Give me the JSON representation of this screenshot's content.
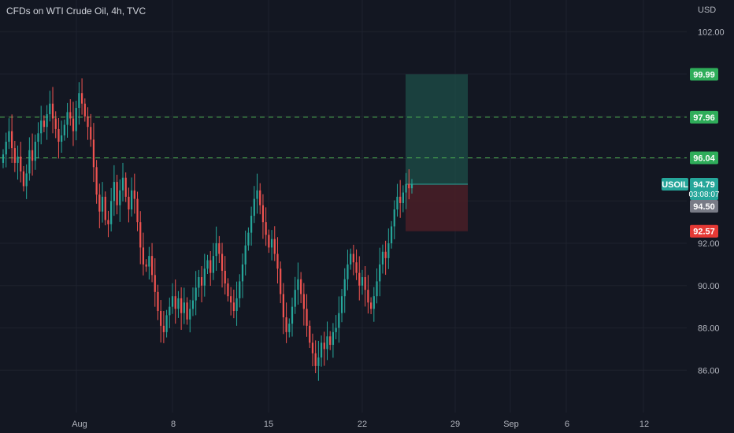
{
  "header": {
    "title": "CFDs on WTI Crude Oil, 4h, TVC",
    "currency": "USD"
  },
  "colors": {
    "background": "#131722",
    "grid": "#1e222d",
    "bull": "#26a69a",
    "bear": "#ef5350",
    "dashed_line": "#4caf50",
    "profit_zone": "#1d4f48",
    "loss_zone": "#4a1f27",
    "label_green": "#2fad5a",
    "label_teal": "#26a69a",
    "label_gray": "#787b86",
    "label_red": "#e53935"
  },
  "price_labels": {
    "take_profit": "99.99",
    "target_97": "97.96",
    "target_96": "96.04",
    "last_price": "94.79",
    "countdown": "03:08:07",
    "entry": "94.50",
    "stop": "92.57",
    "symbol": "USOIL"
  },
  "chart_data": {
    "type": "candlestick",
    "y_axis_ticks": [
      102.0,
      100.0,
      98.0,
      96.0,
      94.0,
      92.0,
      90.0,
      88.0,
      86.0
    ],
    "y_axis_labels": [
      "102.00",
      "92.00",
      "90.00",
      "88.00",
      "86.00"
    ],
    "x_axis_labels": [
      "Aug",
      "8",
      "15",
      "22",
      "29",
      "Sep",
      "6",
      "12"
    ],
    "ylim": [
      84.0,
      103.5
    ],
    "dashed_levels": [
      97.96,
      96.04
    ],
    "position": {
      "take_profit": 99.99,
      "entry": 94.5,
      "stop": 92.57
    },
    "last_price": 94.79,
    "closes": [
      96.2,
      96.8,
      97.3,
      96.5,
      95.8,
      96.1,
      95.4,
      94.7,
      95.3,
      96.4,
      95.9,
      96.8,
      97.2,
      97.8,
      97.5,
      98.1,
      98.6,
      97.9,
      97.4,
      96.8,
      97.1,
      97.6,
      98.2,
      97.9,
      97.3,
      98.4,
      99.1,
      98.6,
      98.0,
      97.5,
      96.9,
      95.6,
      94.3,
      93.5,
      94.2,
      93.1,
      92.9,
      94.0,
      94.9,
      93.8,
      94.5,
      95.1,
      94.2,
      93.6,
      94.5,
      94.1,
      93.0,
      91.8,
      91.0,
      90.9,
      91.4,
      90.5,
      89.7,
      88.8,
      88.1,
      87.8,
      88.6,
      89.0,
      89.5,
      88.9,
      89.4,
      88.7,
      89.2,
      88.4,
      88.9,
      89.3,
      89.9,
      90.4,
      90.0,
      90.8,
      91.2,
      90.6,
      91.4,
      92.0,
      91.5,
      90.7,
      90.1,
      89.5,
      89.2,
      88.8,
      89.4,
      90.2,
      91.0,
      91.9,
      92.5,
      93.3,
      94.1,
      94.5,
      93.8,
      93.0,
      92.4,
      91.8,
      92.2,
      91.5,
      90.8,
      89.6,
      88.5,
      87.8,
      88.2,
      89.0,
      89.8,
      90.3,
      89.6,
      88.9,
      88.1,
      87.3,
      86.8,
      86.2,
      86.6,
      87.3,
      87.0,
      87.6,
      87.2,
      87.8,
      88.0,
      88.7,
      89.5,
      90.3,
      91.0,
      91.5,
      91.1,
      90.6,
      90.0,
      90.4,
      89.8,
      89.2,
      88.9,
      89.5,
      90.2,
      91.0,
      91.6,
      91.3,
      92.0,
      92.8,
      93.6,
      94.2,
      93.9,
      94.4,
      94.8,
      94.6,
      94.79
    ]
  }
}
